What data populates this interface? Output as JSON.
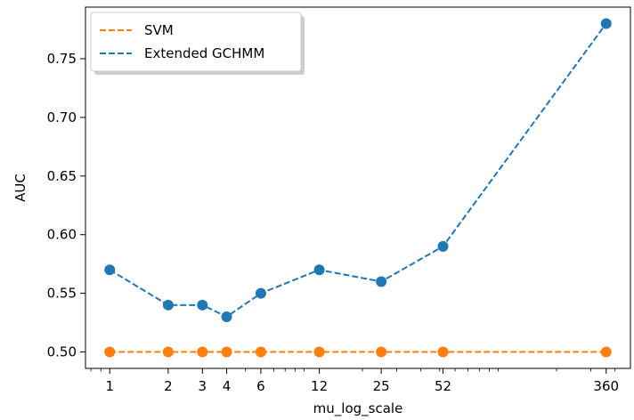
{
  "chart_data": {
    "type": "line",
    "x_scale": "log",
    "xlabel": "mu_log_scale",
    "ylabel": "AUC",
    "x": [
      1,
      2,
      3,
      4,
      6,
      12,
      25,
      52,
      360
    ],
    "x_tick_labels": [
      "1",
      "2",
      "3",
      "4",
      "6",
      "12",
      "25",
      "52",
      "360"
    ],
    "y_ticks": [
      0.5,
      0.55,
      0.6,
      0.65,
      0.7,
      0.75
    ],
    "y_tick_labels": [
      "0.50",
      "0.55",
      "0.60",
      "0.65",
      "0.70",
      "0.75"
    ],
    "ylim": [
      0.486,
      0.794
    ],
    "xlim": [
      0.75,
      480
    ],
    "grid": false,
    "legend_position": "top-left",
    "series": [
      {
        "name": "SVM",
        "color": "#ff7f0e",
        "line_style": "dashed",
        "values": [
          0.5,
          0.5,
          0.5,
          0.5,
          0.5,
          0.5,
          0.5,
          0.5,
          0.5
        ]
      },
      {
        "name": "Extended GCHMM",
        "color": "#1f77b4",
        "line_style": "dashed",
        "values": [
          0.57,
          0.54,
          0.54,
          0.53,
          0.55,
          0.57,
          0.56,
          0.59,
          0.78
        ]
      }
    ]
  }
}
